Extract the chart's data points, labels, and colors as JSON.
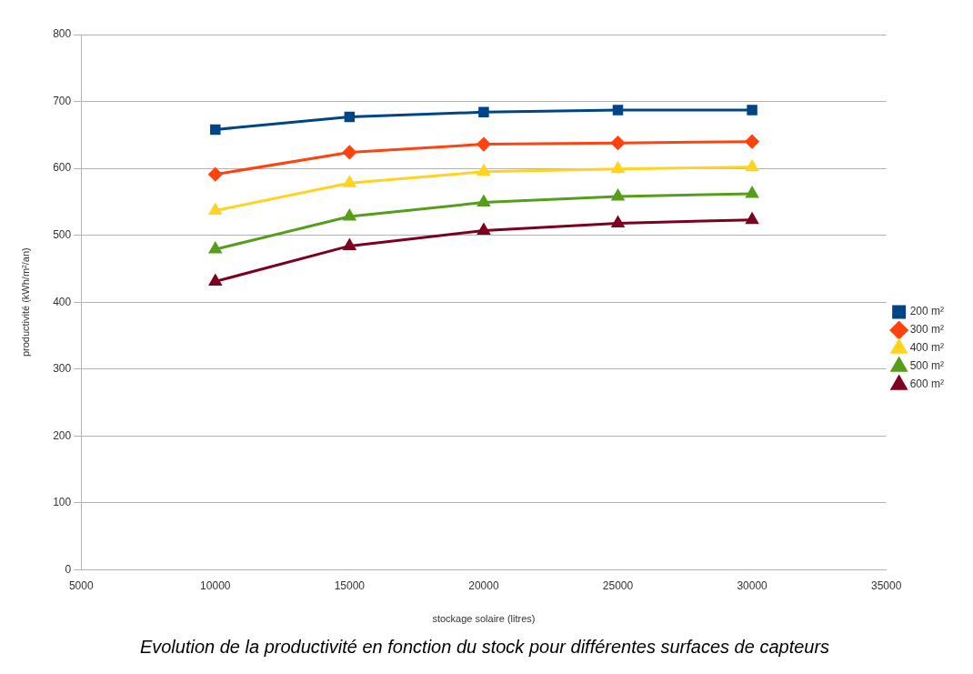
{
  "chart_data": {
    "type": "line",
    "title": "Evolution de la productivité en fonction du stock pour différentes surfaces de capteurs",
    "xlabel": "stockage solaire (litres)",
    "ylabel": "productivité (kWh/m²/an)",
    "x": [
      10000,
      15000,
      20000,
      25000,
      30000
    ],
    "series": [
      {
        "name": "200 m²",
        "color": "#004586",
        "marker": "square",
        "values": [
          658,
          677,
          684,
          687,
          687
        ]
      },
      {
        "name": "300 m²",
        "color": "#ff420e",
        "marker": "diamond",
        "values": [
          591,
          624,
          636,
          638,
          640
        ]
      },
      {
        "name": "400 m²",
        "color": "#ffd320",
        "marker": "triangle",
        "values": [
          537,
          578,
          595,
          599,
          602
        ]
      },
      {
        "name": "500 m²",
        "color": "#579d1c",
        "marker": "triangle",
        "values": [
          479,
          528,
          549,
          558,
          562
        ]
      },
      {
        "name": "600 m²",
        "color": "#7e0021",
        "marker": "triangle",
        "values": [
          431,
          484,
          507,
          518,
          523
        ]
      }
    ],
    "xlim": [
      5000,
      35000
    ],
    "xticks": [
      5000,
      10000,
      15000,
      20000,
      25000,
      30000,
      35000
    ],
    "ylim": [
      0,
      800
    ],
    "yticks": [
      0,
      100,
      200,
      300,
      400,
      500,
      600,
      700,
      800
    ],
    "grid": "y",
    "legend": "right",
    "line_style": "solid"
  }
}
